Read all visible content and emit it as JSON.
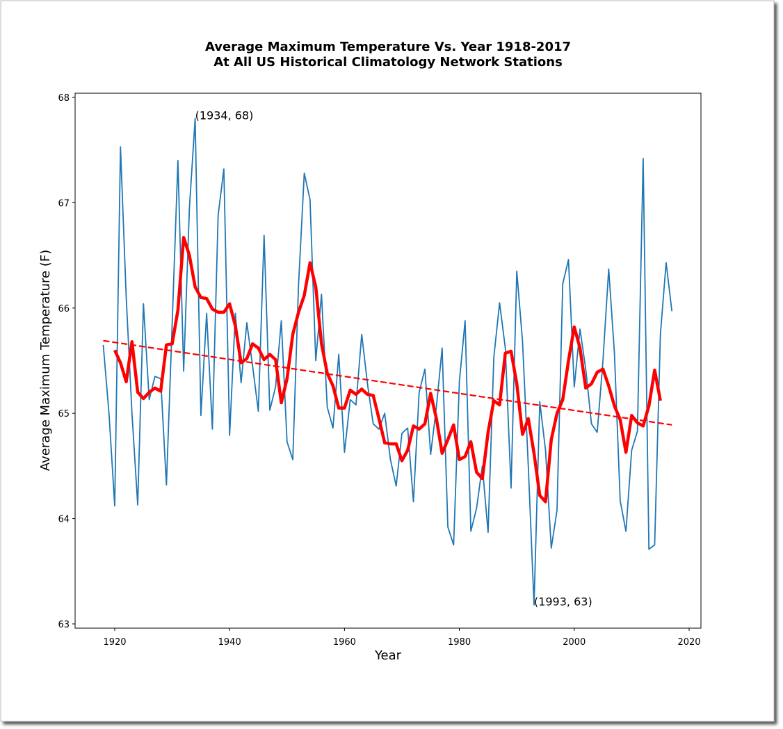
{
  "chart_data": {
    "type": "line",
    "title": "Average Maximum Temperature Vs. Year 1918-2017",
    "subtitle": "At All US Historical Climatology Network Stations",
    "x_label": "Year",
    "y_label": "Average Maximum Temperature (F)",
    "xlim": [
      1913.1,
      2022.06
    ],
    "ylim": [
      62.96,
      68.04
    ],
    "xticks": [
      1920,
      1940,
      1960,
      1980,
      2000,
      2020
    ],
    "yticks": [
      63,
      64,
      65,
      66,
      67,
      68
    ],
    "grid": false,
    "series": [
      {
        "color": "#1f77b4",
        "linestyle": "solid",
        "linewidth": 1.8,
        "x": [
          1918,
          1919,
          1920,
          1921,
          1922,
          1923,
          1924,
          1925,
          1926,
          1927,
          1928,
          1929,
          1930,
          1931,
          1932,
          1933,
          1934,
          1935,
          1936,
          1937,
          1938,
          1939,
          1940,
          1941,
          1942,
          1943,
          1944,
          1945,
          1946,
          1947,
          1948,
          1949,
          1950,
          1951,
          1952,
          1953,
          1954,
          1955,
          1956,
          1957,
          1958,
          1959,
          1960,
          1961,
          1962,
          1963,
          1964,
          1965,
          1966,
          1967,
          1968,
          1969,
          1970,
          1971,
          1972,
          1973,
          1974,
          1975,
          1976,
          1977,
          1978,
          1979,
          1980,
          1981,
          1982,
          1983,
          1984,
          1985,
          1986,
          1987,
          1988,
          1989,
          1990,
          1991,
          1992,
          1993,
          1994,
          1995,
          1996,
          1997,
          1998,
          1999,
          2000,
          2001,
          2002,
          2003,
          2004,
          2005,
          2006,
          2007,
          2008,
          2009,
          2010,
          2011,
          2012,
          2013,
          2014,
          2015,
          2016,
          2017
        ],
        "values": [
          65.65,
          65.0,
          64.12,
          67.53,
          66.1,
          65.0,
          64.13,
          66.04,
          65.13,
          65.35,
          65.33,
          64.32,
          65.85,
          67.4,
          65.4,
          66.95,
          67.8,
          64.98,
          65.95,
          64.85,
          66.88,
          67.32,
          64.79,
          65.95,
          65.29,
          65.86,
          65.45,
          65.02,
          66.69,
          65.03,
          65.25,
          65.88,
          64.73,
          64.56,
          66.22,
          67.28,
          67.03,
          65.5,
          66.13,
          65.06,
          64.86,
          65.56,
          64.63,
          65.13,
          65.08,
          65.75,
          65.28,
          64.9,
          64.85,
          65.0,
          64.56,
          64.31,
          64.81,
          64.86,
          64.16,
          65.2,
          65.42,
          64.61,
          65.06,
          65.62,
          63.92,
          63.75,
          65.3,
          65.88,
          63.88,
          64.1,
          64.5,
          63.87,
          65.53,
          66.05,
          65.62,
          64.29,
          66.35,
          65.68,
          64.5,
          63.18,
          65.11,
          64.65,
          63.72,
          64.08,
          66.23,
          66.46,
          65.25,
          65.8,
          65.42,
          64.9,
          64.82,
          65.5,
          66.37,
          65.57,
          64.17,
          63.88,
          64.65,
          64.83,
          67.42,
          63.71,
          63.75,
          65.75,
          66.43,
          65.97
        ]
      },
      {
        "color": "#ff0000",
        "linestyle": "solid",
        "linewidth": 4.5,
        "x": [
          1920,
          1921,
          1922,
          1923,
          1924,
          1925,
          1926,
          1927,
          1928,
          1929,
          1930,
          1931,
          1932,
          1933,
          1934,
          1935,
          1936,
          1937,
          1938,
          1939,
          1940,
          1941,
          1942,
          1943,
          1944,
          1945,
          1946,
          1947,
          1948,
          1949,
          1950,
          1951,
          1952,
          1953,
          1954,
          1955,
          1956,
          1957,
          1958,
          1959,
          1960,
          1961,
          1962,
          1963,
          1964,
          1965,
          1966,
          1967,
          1968,
          1969,
          1970,
          1971,
          1972,
          1973,
          1974,
          1975,
          1976,
          1977,
          1978,
          1979,
          1980,
          1981,
          1982,
          1983,
          1984,
          1985,
          1986,
          1987,
          1988,
          1989,
          1990,
          1991,
          1992,
          1993,
          1994,
          1995,
          1996,
          1997,
          1998,
          1999,
          2000,
          2001,
          2002,
          2003,
          2004,
          2005,
          2006,
          2007,
          2008,
          2009,
          2010,
          2011,
          2012,
          2013,
          2014,
          2015
        ],
        "values": [
          65.6,
          65.48,
          65.3,
          65.68,
          65.2,
          65.14,
          65.2,
          65.24,
          65.21,
          65.65,
          65.66,
          65.98,
          66.67,
          66.5,
          66.2,
          66.1,
          66.09,
          65.99,
          65.96,
          65.96,
          66.04,
          65.83,
          65.48,
          65.52,
          65.66,
          65.62,
          65.51,
          65.56,
          65.51,
          65.1,
          65.33,
          65.75,
          65.96,
          66.12,
          66.43,
          66.2,
          65.66,
          65.38,
          65.26,
          65.05,
          65.05,
          65.22,
          65.18,
          65.23,
          65.18,
          65.17,
          64.95,
          64.72,
          64.71,
          64.71,
          64.55,
          64.65,
          64.88,
          64.85,
          64.9,
          65.19,
          64.95,
          64.62,
          64.75,
          64.89,
          64.56,
          64.59,
          64.73,
          64.44,
          64.38,
          64.82,
          65.12,
          65.08,
          65.57,
          65.59,
          65.28,
          64.8,
          64.95,
          64.62,
          64.22,
          64.16,
          64.75,
          65.0,
          65.13,
          65.5,
          65.82,
          65.62,
          65.24,
          65.28,
          65.39,
          65.42,
          65.26,
          65.07,
          64.94,
          64.63,
          64.98,
          64.91,
          64.88,
          65.07,
          65.41,
          65.12
        ]
      },
      {
        "color": "#ff0000",
        "linestyle": "dashed",
        "linewidth": 2.2,
        "x": [
          1918,
          2017
        ],
        "values": [
          65.69,
          64.89
        ]
      }
    ],
    "annotations": [
      {
        "text": "(1934, 68)",
        "x": 1934,
        "y": 67.8
      },
      {
        "text": "(1993, 63)",
        "x": 1993,
        "y": 63.18
      }
    ]
  }
}
